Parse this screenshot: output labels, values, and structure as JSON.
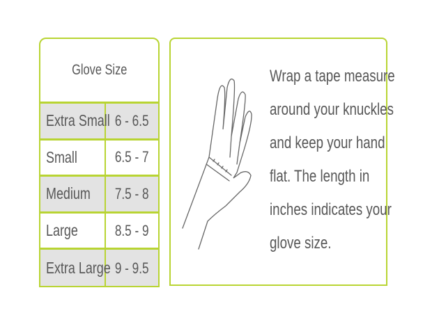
{
  "table": {
    "header": "Glove Size",
    "rows": [
      {
        "size": "Extra Small",
        "range": "6 - 6.5"
      },
      {
        "size": "Small",
        "range": "6.5 - 7"
      },
      {
        "size": "Medium",
        "range": "7.5 - 8"
      },
      {
        "size": "Large",
        "range": "8.5 - 9"
      },
      {
        "size": "Extra Large",
        "range": "9 - 9.5"
      }
    ]
  },
  "instructions": {
    "lines": [
      "Wrap a tape measure",
      "around your knuckles",
      "and keep your hand",
      "flat. The length in",
      "inches indicates your",
      "glove size."
    ]
  },
  "illustration": "hand-with-tape-measure-icon",
  "colors": {
    "border": "#b8d432",
    "row_shade": "#e3e3e3",
    "text": "#575757"
  }
}
